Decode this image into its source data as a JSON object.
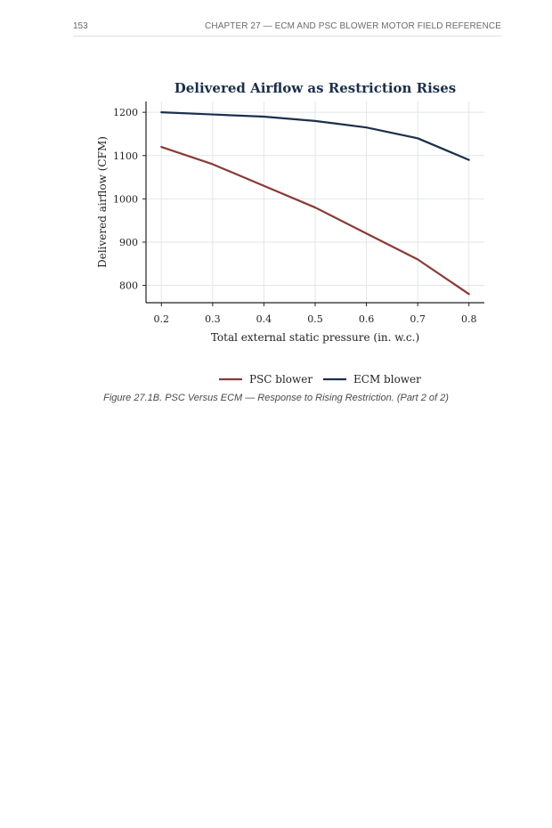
{
  "header": {
    "page_number": "153",
    "running_head": "CHAPTER 27 — ECM AND PSC BLOWER MOTOR FIELD REFERENCE"
  },
  "figure": {
    "caption": "Figure 27.1B. PSC Versus ECM — Response to Rising Restriction. (Part 2 of 2)"
  },
  "chart_data": {
    "type": "line",
    "title": "Delivered Airflow as Restriction Rises",
    "xlabel": "Total external static pressure (in. w.c.)",
    "ylabel": "Delivered airflow (CFM)",
    "x": [
      0.2,
      0.3,
      0.4,
      0.5,
      0.6,
      0.7,
      0.8
    ],
    "x_tick_labels": [
      "0.2",
      "0.3",
      "0.4",
      "0.5",
      "0.6",
      "0.7",
      "0.8"
    ],
    "y_ticks": [
      800,
      900,
      1000,
      1100,
      1200
    ],
    "y_tick_labels": [
      "800",
      "900",
      "1000",
      "1100",
      "1200"
    ],
    "xlim": [
      0.17,
      0.83
    ],
    "ylim": [
      760,
      1225
    ],
    "grid": true,
    "legend_position": "bottom-center",
    "series": [
      {
        "name": "PSC blower",
        "color": "#8b3a36",
        "values": [
          1120,
          1080,
          1030,
          980,
          920,
          860,
          780
        ]
      },
      {
        "name": "ECM blower",
        "color": "#1c2f4d",
        "values": [
          1200,
          1195,
          1190,
          1180,
          1165,
          1140,
          1090
        ]
      }
    ]
  }
}
